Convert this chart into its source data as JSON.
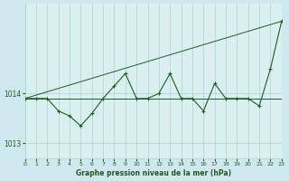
{
  "title": "Graphe pression niveau de la mer (hPa)",
  "bg_color": "#cfe8ef",
  "plot_bg_color": "#daf0f0",
  "line_color": "#1e5c1e",
  "grid_color": "#aad4d4",
  "text_color": "#1e5c1e",
  "xlim": [
    0,
    23
  ],
  "ylim": [
    1012.7,
    1015.8
  ],
  "yticks": [
    1013,
    1014
  ],
  "xticks": [
    0,
    1,
    2,
    3,
    4,
    5,
    6,
    7,
    8,
    9,
    10,
    11,
    12,
    13,
    14,
    15,
    16,
    17,
    18,
    19,
    20,
    21,
    22,
    23
  ],
  "hours": [
    0,
    1,
    2,
    3,
    4,
    5,
    6,
    7,
    8,
    9,
    10,
    11,
    12,
    13,
    14,
    15,
    16,
    17,
    18,
    19,
    20,
    21,
    22,
    23
  ],
  "pressure": [
    1013.9,
    1013.9,
    1013.9,
    1013.65,
    1013.55,
    1013.35,
    1013.6,
    1013.9,
    1014.15,
    1014.4,
    1013.9,
    1013.9,
    1014.0,
    1014.4,
    1013.9,
    1013.9,
    1013.65,
    1014.2,
    1013.9,
    1013.9,
    1013.9,
    1013.75,
    1014.5,
    1015.45
  ],
  "flat_line_y": 1013.9,
  "trend_x": [
    0,
    23
  ],
  "trend_y": [
    1013.9,
    1015.45
  ]
}
